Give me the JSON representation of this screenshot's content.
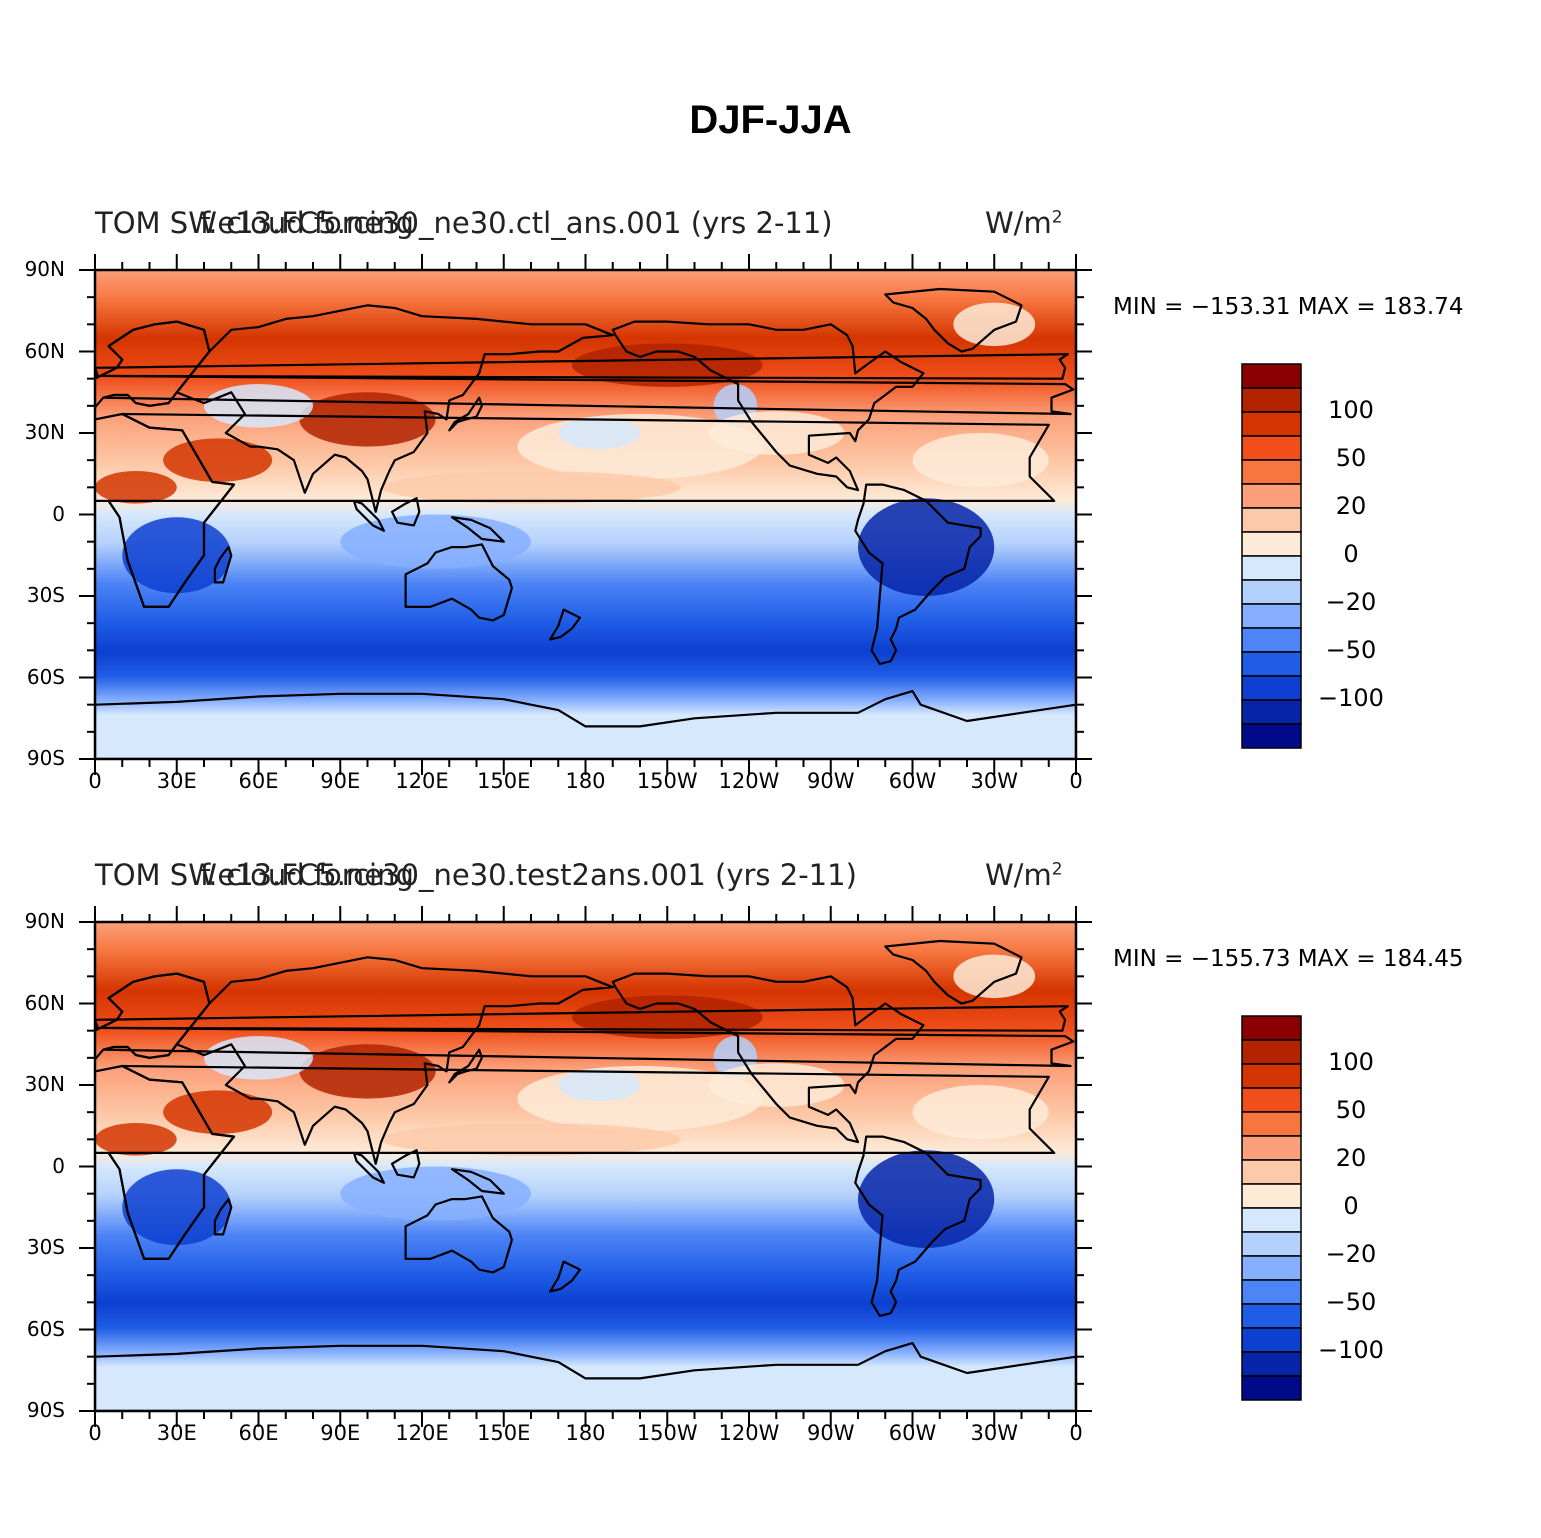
{
  "figure_title": "DJF-JJA",
  "panels": [
    {
      "left_title": "TOM SW cloud forcing",
      "center_title": "f.e13.FC5.ne30_ne30.ctl_ans.001 (yrs 2-11)",
      "units": "W/m",
      "units_sup": "2",
      "minmax": "MIN = −153.31  MAX = 183.74"
    },
    {
      "left_title": "TOM SW cloud forcing",
      "center_title": "f.e13.FC5.ne30_ne30.test2ans.001 (yrs 2-11)",
      "units": "W/m",
      "units_sup": "2",
      "minmax": "MIN = −155.73  MAX = 184.45"
    }
  ],
  "axes": {
    "y_labels": [
      "90N",
      "60N",
      "30N",
      "0",
      "30S",
      "60S",
      "90S"
    ],
    "x_labels": [
      "0",
      "30E",
      "60E",
      "90E",
      "120E",
      "150E",
      "180",
      "150W",
      "120W",
      "90W",
      "60W",
      "30W",
      "0"
    ]
  },
  "colorbar": {
    "labels": [
      "100",
      "50",
      "20",
      "0",
      "−20",
      "−50",
      "−100"
    ],
    "colors": [
      "#8b0000",
      "#b22300",
      "#d43500",
      "#f04e1a",
      "#f7763f",
      "#fba07a",
      "#fdcaa9",
      "#fdebd8",
      "#d6e8fc",
      "#b4d0fc",
      "#86afff",
      "#4d84f6",
      "#1f5de6",
      "#0d3fd0",
      "#0625a8",
      "#020a8c"
    ]
  },
  "palette": {
    "ocean_equator": "#fdebd8",
    "land_outline": "#000000"
  }
}
